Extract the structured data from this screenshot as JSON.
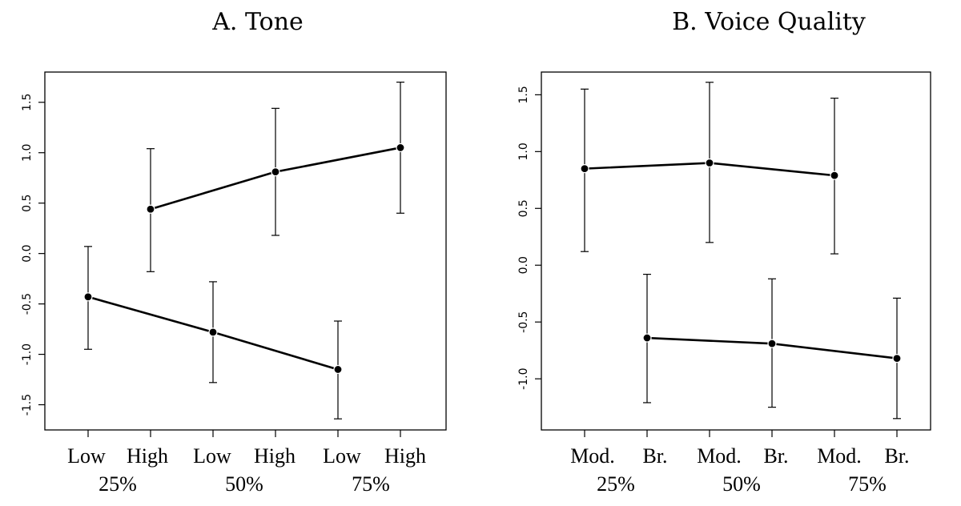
{
  "chart_data": [
    {
      "type": "line",
      "title": "A. Tone",
      "xlabel": "",
      "ylabel": "",
      "ylim": [
        -1.75,
        1.8
      ],
      "yticks": [
        "1.5",
        "1.0",
        "0.5",
        "0.0",
        "-0.5",
        "-1.0",
        "-1.5"
      ],
      "ytick_values": [
        1.5,
        1.0,
        0.5,
        0.0,
        -0.5,
        -1.0,
        -1.5
      ],
      "categories": [
        "Low",
        "High",
        "Low",
        "High",
        "Low",
        "High"
      ],
      "groups": [
        "25%",
        "50%",
        "75%"
      ],
      "series": [
        {
          "points": [
            {
              "x": 1,
              "y": 0.44,
              "lo": -0.18,
              "hi": 1.04
            },
            {
              "x": 3,
              "y": 0.81,
              "lo": 0.18,
              "hi": 1.44
            },
            {
              "x": 5,
              "y": 1.05,
              "lo": 0.4,
              "hi": 1.7
            }
          ]
        },
        {
          "points": [
            {
              "x": 0,
              "y": -0.43,
              "lo": -0.95,
              "hi": 0.07
            },
            {
              "x": 2,
              "y": -0.78,
              "lo": -1.28,
              "hi": -0.28
            },
            {
              "x": 4,
              "y": -1.15,
              "lo": -1.64,
              "hi": -0.67
            }
          ]
        }
      ]
    },
    {
      "type": "line",
      "title": "B. Voice Quality",
      "xlabel": "",
      "ylabel": "",
      "ylim": [
        -1.45,
        1.7
      ],
      "yticks": [
        "1.5",
        "1.0",
        "0.5",
        "0.0",
        "-0.5",
        "-1.0"
      ],
      "ytick_values": [
        1.5,
        1.0,
        0.5,
        0.0,
        -0.5,
        -1.0
      ],
      "categories": [
        "Mod.",
        "Br.",
        "Mod.",
        "Br.",
        "Mod.",
        "Br."
      ],
      "groups": [
        "25%",
        "50%",
        "75%"
      ],
      "series": [
        {
          "points": [
            {
              "x": 0,
              "y": 0.85,
              "lo": 0.12,
              "hi": 1.55
            },
            {
              "x": 2,
              "y": 0.9,
              "lo": 0.2,
              "hi": 1.61
            },
            {
              "x": 4,
              "y": 0.79,
              "lo": 0.1,
              "hi": 1.47
            }
          ]
        },
        {
          "points": [
            {
              "x": 1,
              "y": -0.64,
              "lo": -1.21,
              "hi": -0.08
            },
            {
              "x": 3,
              "y": -0.69,
              "lo": -1.25,
              "hi": -0.12
            },
            {
              "x": 5,
              "y": -0.82,
              "lo": -1.35,
              "hi": -0.29
            }
          ]
        }
      ]
    }
  ]
}
